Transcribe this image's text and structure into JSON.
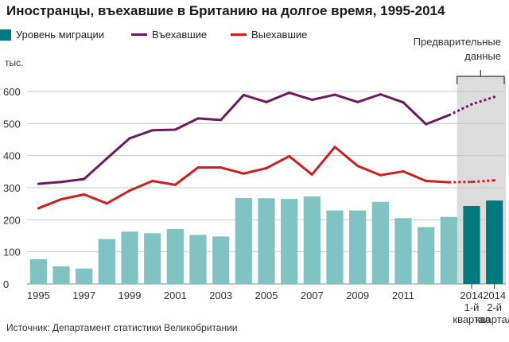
{
  "title": "Иностранцы, въехавшие в Британию на долгое время, 1995-2014",
  "legend": {
    "migration": "Уровень миграции",
    "arrived": "Въехавшие",
    "left": "Выехавшие"
  },
  "unit_label": "тыс.",
  "preliminary_note": {
    "line1": "Предварительные",
    "line2": "данные"
  },
  "source": "Источник: Департамент статистики Великобритании",
  "colors": {
    "bar": "#7fc4c3",
    "bar_preliminary": "#00797d",
    "arrived": "#6b1b5e",
    "left": "#cc1f1f",
    "preliminary_band": "#dcdcdc",
    "grid": "#c8c8c8"
  },
  "chart_data": {
    "type": "bar",
    "title": "Иностранцы, въехавшие в Британию на долгое время, 1995-2014",
    "ylabel": "тыс.",
    "ylim": [
      0,
      600
    ],
    "yticks": [
      0,
      100,
      200,
      300,
      400,
      500,
      600
    ],
    "grid": true,
    "legend_position": "top",
    "categories": [
      "1995",
      "1996",
      "1997",
      "1998",
      "1999",
      "2000",
      "2001",
      "2002",
      "2003",
      "2004",
      "2005",
      "2006",
      "2007",
      "2008",
      "2009",
      "2010",
      "2011",
      "2012",
      "2013",
      "2014 1-й квартал",
      "2014 2-й квартал"
    ],
    "x_tick_labels": [
      {
        "index": 0,
        "lines": [
          "1995"
        ]
      },
      {
        "index": 2,
        "lines": [
          "1997"
        ]
      },
      {
        "index": 4,
        "lines": [
          "1999"
        ]
      },
      {
        "index": 6,
        "lines": [
          "2001"
        ]
      },
      {
        "index": 8,
        "lines": [
          "2003"
        ]
      },
      {
        "index": 10,
        "lines": [
          "2005"
        ]
      },
      {
        "index": 12,
        "lines": [
          "2007"
        ]
      },
      {
        "index": 14,
        "lines": [
          "2009"
        ]
      },
      {
        "index": 16,
        "lines": [
          "2011"
        ]
      },
      {
        "index": 19,
        "lines": [
          "2014",
          "1-й",
          "квартал"
        ]
      },
      {
        "index": 20,
        "lines": [
          "2014",
          "2-й",
          "квартал"
        ]
      }
    ],
    "preliminary_from_index": 19,
    "series": [
      {
        "name": "Уровень миграции",
        "type": "bar",
        "values": [
          77,
          55,
          48,
          140,
          163,
          158,
          171,
          153,
          148,
          268,
          267,
          265,
          273,
          229,
          229,
          256,
          205,
          177,
          209,
          243,
          260
        ]
      },
      {
        "name": "Въехавшие",
        "type": "line",
        "values": [
          312,
          318,
          327,
          391,
          454,
          479,
          481,
          516,
          511,
          589,
          567,
          596,
          574,
          590,
          567,
          591,
          566,
          498,
          526,
          560,
          583
        ]
      },
      {
        "name": "Выехавшие",
        "type": "line",
        "values": [
          236,
          264,
          279,
          251,
          291,
          321,
          309,
          363,
          363,
          344,
          361,
          398,
          341,
          427,
          368,
          339,
          351,
          321,
          317,
          318,
          323
        ]
      }
    ]
  }
}
